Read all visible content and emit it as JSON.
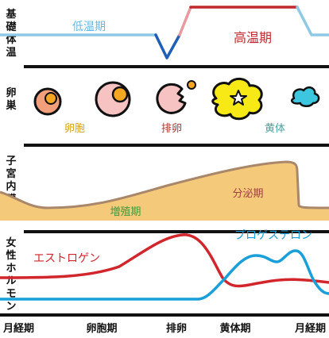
{
  "row_labels": {
    "bbt": [
      "基",
      "礎",
      "体",
      "温"
    ],
    "ovary": [
      "卵",
      "巣"
    ],
    "endometrium": [
      "子",
      "宮",
      "内",
      "膜"
    ],
    "hormone": [
      "女",
      "性",
      "ホ",
      "ル",
      "モ",
      "ン"
    ]
  },
  "bbt": {
    "low_phase": "低温期",
    "high_phase": "高温期"
  },
  "ovary": {
    "follicle": "卵胞",
    "ovulation": "排卵",
    "corpus_luteum": "黄体"
  },
  "endometrium": {
    "proliferative": "増殖期",
    "secretory": "分泌期"
  },
  "hormones": {
    "estrogen": "エストロゲン",
    "progesterone": "プロゲステロン"
  },
  "phases": [
    "月経期",
    "卵胞期",
    "排卵",
    "黄体期",
    "月経期"
  ],
  "colors": {
    "low_temp_line": "#8ecae6",
    "ovulation_dip": "#1f5fb5",
    "high_temp_line": "#c0282d",
    "high_temp_fade": "#e89a9e",
    "estrogen": "#d1262c",
    "progesterone": "#1b9fd8",
    "endometrium_fill": "#f5c97a",
    "endometrium_edge": "#a9876a",
    "follicle_fill": "#f2a07b",
    "egg_fill": "#f5a623",
    "pink_follicle": "#f7c2c2",
    "corpus_luteum": "#f6e916",
    "degenerated_body": "#3cc6e0",
    "low_label": "#6ab7df",
    "ovary_follicle_label": "#d4a017",
    "ovary_ovulation_label": "#b0332f",
    "ovary_luteum_label": "#4aa3a0",
    "endo_label": "#3f9a3f",
    "endo_secretory_label": "#a04040",
    "hormone_estrogen_label": "#d1262c",
    "hormone_prog_label": "#1b9fd8"
  }
}
